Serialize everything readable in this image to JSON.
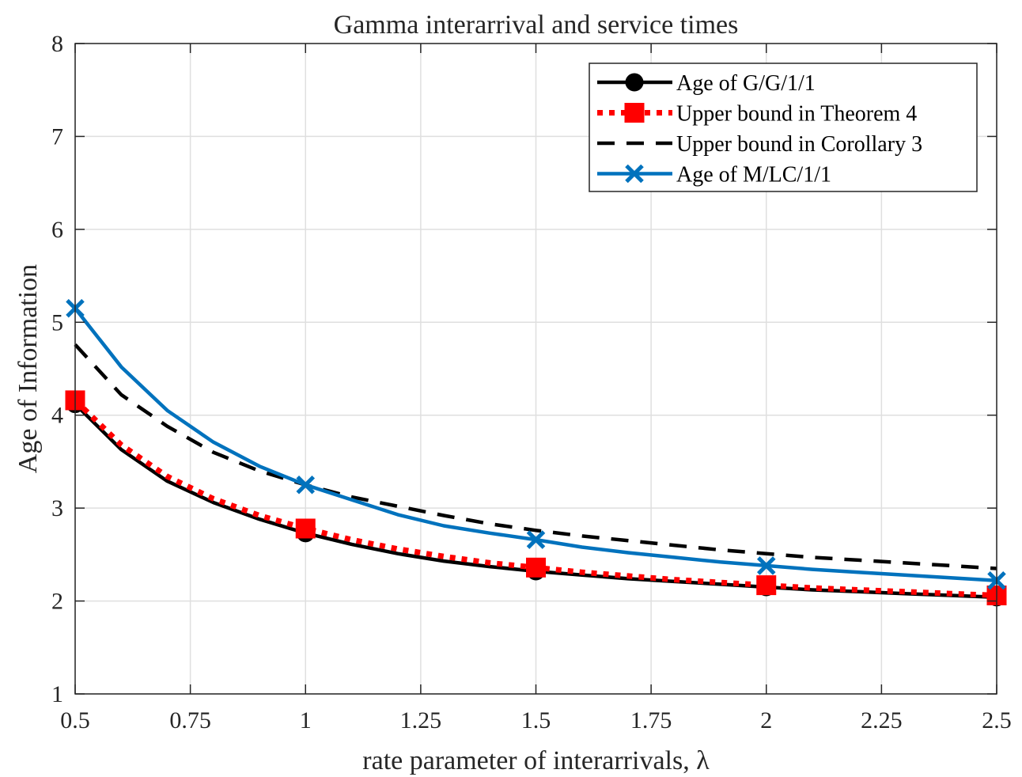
{
  "chart_data": {
    "type": "line",
    "title": "Gamma interarrival and service times",
    "xlabel": "rate parameter of interarrivals, λ",
    "ylabel": "Age of Information",
    "xlim": [
      0.5,
      2.5
    ],
    "ylim": [
      1,
      8
    ],
    "xticks": [
      0.5,
      0.75,
      1,
      1.25,
      1.5,
      1.75,
      2,
      2.25,
      2.5
    ],
    "xtick_labels": [
      "0.5",
      "0.75",
      "1",
      "1.25",
      "1.5",
      "1.75",
      "2",
      "2.25",
      "2.5"
    ],
    "yticks": [
      1,
      2,
      3,
      4,
      5,
      6,
      7,
      8
    ],
    "ytick_labels": [
      "1",
      "2",
      "3",
      "4",
      "5",
      "6",
      "7",
      "8"
    ],
    "grid": true,
    "legend_position": "top-right",
    "x": [
      0.5,
      0.6,
      0.7,
      0.8,
      0.9,
      1.0,
      1.1,
      1.2,
      1.3,
      1.4,
      1.5,
      1.6,
      1.7,
      1.8,
      1.9,
      2.0,
      2.1,
      2.2,
      2.3,
      2.4,
      2.5
    ],
    "series": [
      {
        "name": "Age of G/G/1/1",
        "color": "#000000",
        "line_style": "solid",
        "marker": "circle",
        "marker_x": [
          0.5,
          1.0,
          1.5,
          2.0,
          2.5
        ],
        "values": [
          4.12,
          3.63,
          3.29,
          3.06,
          2.88,
          2.73,
          2.61,
          2.51,
          2.43,
          2.37,
          2.32,
          2.28,
          2.24,
          2.21,
          2.18,
          2.15,
          2.12,
          2.1,
          2.08,
          2.06,
          2.04
        ]
      },
      {
        "name": "Upper bound in Theorem 4",
        "color": "#ff0000",
        "line_style": "dotted",
        "marker": "square",
        "marker_x": [
          0.5,
          1.0,
          1.5,
          2.0,
          2.5
        ],
        "values": [
          4.16,
          3.68,
          3.34,
          3.1,
          2.92,
          2.78,
          2.66,
          2.56,
          2.48,
          2.41,
          2.36,
          2.31,
          2.27,
          2.23,
          2.2,
          2.17,
          2.14,
          2.12,
          2.1,
          2.08,
          2.06
        ]
      },
      {
        "name": "Upper bound in Corollary 3",
        "color": "#000000",
        "line_style": "dashed",
        "marker": "none",
        "marker_x": [],
        "values": [
          4.76,
          4.22,
          3.88,
          3.6,
          3.4,
          3.25,
          3.12,
          3.02,
          2.92,
          2.83,
          2.76,
          2.7,
          2.65,
          2.6,
          2.55,
          2.51,
          2.47,
          2.44,
          2.41,
          2.38,
          2.35
        ]
      },
      {
        "name": "Age of M/LC/1/1",
        "color": "#0072bd",
        "line_style": "solid",
        "marker": "x",
        "marker_x": [
          0.5,
          1.0,
          1.5,
          2.0,
          2.5
        ],
        "values": [
          5.15,
          4.52,
          4.05,
          3.71,
          3.45,
          3.25,
          3.09,
          2.93,
          2.81,
          2.73,
          2.66,
          2.58,
          2.52,
          2.47,
          2.42,
          2.38,
          2.34,
          2.31,
          2.28,
          2.25,
          2.22
        ]
      }
    ]
  }
}
